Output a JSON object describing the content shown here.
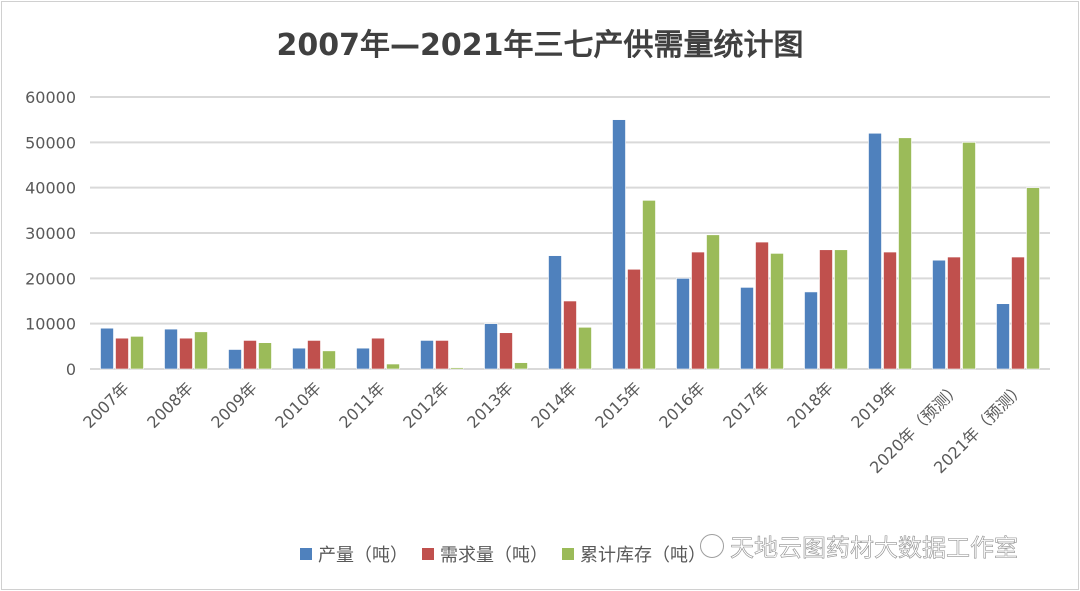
{
  "chart_data": {
    "type": "bar",
    "title": "2007年—2021年三七产供需量统计图",
    "categories": [
      "2007年",
      "2008年",
      "2009年",
      "2010年",
      "2011年",
      "2012年",
      "2013年",
      "2014年",
      "2015年",
      "2016年",
      "2017年",
      "2018年",
      "2019年",
      "2020年（预测）",
      "2021年（预测）"
    ],
    "series": [
      {
        "name": "产量（吨）",
        "color": "#4F81BD",
        "values": [
          9000,
          8800,
          4300,
          4600,
          4600,
          6300,
          10000,
          25000,
          55000,
          20000,
          18000,
          17000,
          52000,
          24000,
          14400
        ]
      },
      {
        "name": "需求量（吨）",
        "color": "#C0504D",
        "values": [
          6800,
          6800,
          6300,
          6300,
          6800,
          6300,
          8000,
          15000,
          22000,
          25800,
          28000,
          26300,
          25800,
          24700,
          24700
        ]
      },
      {
        "name": "累计库存（吨）",
        "color": "#9BBB59",
        "values": [
          7200,
          8200,
          5800,
          4000,
          1100,
          300,
          1400,
          9200,
          37200,
          29600,
          25500,
          26300,
          51000,
          50000,
          40000
        ]
      }
    ],
    "yticks": [
      "0",
      "10000",
      "20000",
      "30000",
      "40000",
      "50000",
      "60000"
    ],
    "ylim": [
      0,
      60000
    ],
    "grid": true,
    "legend": "bottom"
  },
  "watermark": "天地云图药材大数据工作室"
}
